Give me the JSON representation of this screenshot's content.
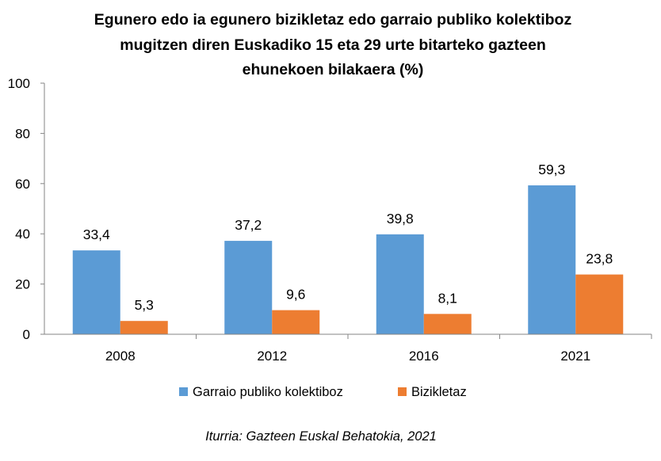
{
  "chart_data": {
    "type": "bar",
    "title_lines": [
      "Egunero edo ia egunero bizikletaz edo garraio publiko kolektiboz",
      "mugitzen diren Euskadiko 15 eta 29 urte bitarteko gazteen",
      "ehunekoen bilakaera (%)"
    ],
    "categories": [
      "2008",
      "2012",
      "2016",
      "2021"
    ],
    "series": [
      {
        "name": "Garraio publiko kolektiboz",
        "color": "#5B9BD5",
        "values": [
          33.4,
          37.2,
          39.8,
          59.3
        ],
        "labels": [
          "33,4",
          "37,2",
          "39,8",
          "59,3"
        ]
      },
      {
        "name": "Bizikletaz",
        "color": "#ED7D31",
        "values": [
          5.3,
          9.6,
          8.1,
          23.8
        ],
        "labels": [
          "5,3",
          "9,6",
          "8,1",
          "23,8"
        ]
      }
    ],
    "ylim": [
      0,
      100
    ],
    "yticks": [
      "0",
      "20",
      "40",
      "60",
      "80",
      "100"
    ],
    "grid": false,
    "legend_position": "bottom",
    "source": "Iturria: Gazteen Euskal Behatokia, 2021"
  }
}
